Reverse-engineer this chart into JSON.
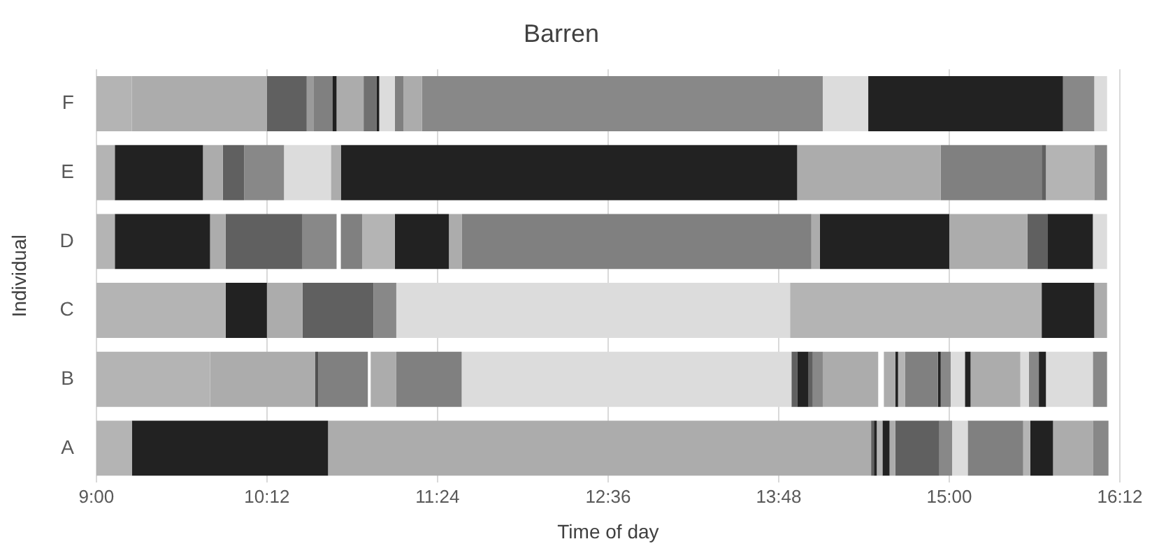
{
  "chart_data": {
    "type": "bar",
    "orientation": "horizontal",
    "title": "Barren",
    "xlabel": "Time of day",
    "ylabel": "Individual",
    "categories": [
      "F",
      "E",
      "D",
      "C",
      "B",
      "A"
    ],
    "xlim": [
      9,
      16.2
    ],
    "xticks": [
      {
        "value": 9,
        "label": "9:00"
      },
      {
        "value": 10.2,
        "label": "10:12"
      },
      {
        "value": 11.4,
        "label": "11:24"
      },
      {
        "value": 12.6,
        "label": "12:36"
      },
      {
        "value": 13.8,
        "label": "13:48"
      },
      {
        "value": 15,
        "label": "15:00"
      },
      {
        "value": 16.2,
        "label": "16:12"
      }
    ],
    "grid": "x",
    "series": [
      {
        "base": [
          9,
          9,
          9,
          9,
          9,
          9
        ],
        "values": [
          0.25,
          0.13,
          0.13,
          0.91,
          0.8,
          0.25
        ],
        "colors": [
          "#b4b4b4",
          "#b4b4b4",
          "#b4b4b4",
          "#b4b4b4",
          "#b4b4b4",
          "#b4b4b4"
        ]
      },
      {
        "base": [
          9.25,
          9.13,
          9.13,
          9.91,
          9.8,
          9.25
        ],
        "values": [
          0.95,
          0.62,
          0.67,
          0.29,
          0.74,
          1.38
        ],
        "colors": [
          "#acacac",
          "#222222",
          "#222222",
          "#222222",
          "#acacac",
          "#222222"
        ]
      },
      {
        "base": [
          10.2,
          9.75,
          9.8,
          10.2,
          10.54,
          10.63
        ],
        "values": [
          0.28,
          0.14,
          0.11,
          0.25,
          0.02,
          3.82
        ],
        "colors": [
          "#606060",
          "#acacac",
          "#acacac",
          "#acacac",
          "#505050",
          "#acacac"
        ]
      },
      {
        "base": [
          10.48,
          9.89,
          9.91,
          10.45,
          10.56,
          14.45
        ],
        "values": [
          0.05,
          0.15,
          0.54,
          0.5,
          0.35,
          0.02
        ],
        "colors": [
          "#9a9a9a",
          "#606060",
          "#606060",
          "#606060",
          "#808080",
          "#606060"
        ]
      },
      {
        "base": [
          10.53,
          10.04,
          10.45,
          10.95,
          10.93,
          14.47
        ],
        "values": [
          0.13,
          0.28,
          0.24,
          0.16,
          0.18,
          0.02
        ],
        "colors": [
          "#808080",
          "#888888",
          "#888888",
          "#888888",
          "#acacac",
          "#222222"
        ]
      },
      {
        "base": [
          10.66,
          10.32,
          10.72,
          11.11,
          11.11,
          14.49
        ],
        "values": [
          0.03,
          0.33,
          0.15,
          2.77,
          0.46,
          0.04
        ],
        "colors": [
          "#202020",
          "#dcdcdc",
          "#808080",
          "#dcdcdc",
          "#808080",
          "#b4b4b4"
        ]
      },
      {
        "base": [
          10.69,
          10.65,
          10.87,
          13.88,
          11.57,
          14.53
        ],
        "values": [
          0.19,
          0.07,
          0.23,
          1.77,
          2.32,
          0.05
        ],
        "colors": [
          "#acacac",
          "#acacac",
          "#b4b4b4",
          "#b4b4b4",
          "#dcdcdc",
          "#222222"
        ]
      },
      {
        "base": [
          10.88,
          10.72,
          11.1,
          15.65,
          13.89,
          14.58
        ],
        "values": [
          0.09,
          3.21,
          0.38,
          0.37,
          0.04,
          0.04
        ],
        "colors": [
          "#707070",
          "#222222",
          "#222222",
          "#222222",
          "#606060",
          "#acacac"
        ]
      },
      {
        "base": [
          10.97,
          13.93,
          11.48,
          16.02,
          13.93,
          14.62
        ],
        "values": [
          0.02,
          1.01,
          0.09,
          0.09,
          0.08,
          0.31
        ],
        "colors": [
          "#202020",
          "#acacac",
          "#acacac",
          "#acacac",
          "#222222",
          "#606060"
        ]
      },
      {
        "base": [
          10.99,
          14.94,
          11.57,
          null,
          14.01,
          14.93
        ],
        "values": [
          0.11,
          0.71,
          2.46,
          null,
          0.03,
          0.09
        ],
        "colors": [
          "#dcdcdc",
          "#808080",
          "#808080",
          null,
          "#606060",
          "#888888"
        ]
      },
      {
        "base": [
          11.1,
          15.65,
          14.03,
          null,
          14.04,
          15.02
        ],
        "values": [
          0.06,
          0.03,
          0.06,
          null,
          0.07,
          0.11
        ],
        "colors": [
          "#808080",
          "#606060",
          "#acacac",
          null,
          "#888888",
          "#dcdcdc"
        ]
      },
      {
        "base": [
          11.16,
          15.68,
          14.09,
          null,
          14.11,
          15.13
        ],
        "values": [
          0.13,
          0.34,
          0.91,
          null,
          0.39,
          0.39
        ],
        "colors": [
          "#acacac",
          "#b4b4b4",
          "#222222",
          null,
          "#acacac",
          "#808080"
        ]
      },
      {
        "base": [
          11.29,
          16.02,
          15,
          null,
          14.54,
          15.52
        ],
        "values": [
          2.82,
          0.09,
          0.55,
          null,
          0.08,
          0.05
        ],
        "colors": [
          "#888888",
          "#888888",
          "#acacac",
          null,
          "#acacac",
          "#b4b4b4"
        ]
      },
      {
        "base": [
          14.11,
          null,
          15.55,
          null,
          14.62,
          15.57
        ],
        "values": [
          0.32,
          null,
          0.14,
          null,
          0.02,
          0.16
        ],
        "colors": [
          "#dcdcdc",
          null,
          "#606060",
          null,
          "#222222",
          "#222222"
        ]
      },
      {
        "base": [
          14.43,
          null,
          15.69,
          null,
          14.64,
          15.73
        ],
        "values": [
          1.37,
          null,
          0.32,
          null,
          0.05,
          0.28
        ],
        "colors": [
          "#222222",
          null,
          "#222222",
          null,
          "#b4b4b4",
          "#acacac"
        ]
      },
      {
        "base": [
          15.8,
          null,
          16.01,
          null,
          14.69,
          16.01
        ],
        "values": [
          0.22,
          null,
          0.1,
          null,
          0.23,
          0.11
        ],
        "colors": [
          "#888888",
          null,
          "#dcdcdc",
          null,
          "#808080",
          "#888888"
        ]
      },
      {
        "base": [
          16.02,
          null,
          null,
          null,
          14.92,
          null
        ],
        "values": [
          0.09,
          null,
          null,
          null,
          0.02,
          null
        ],
        "colors": [
          "#dcdcdc",
          null,
          null,
          null,
          "#222222",
          null
        ]
      },
      {
        "base": [
          null,
          null,
          null,
          null,
          14.94,
          null
        ],
        "values": [
          null,
          null,
          null,
          null,
          0.07,
          null
        ],
        "colors": [
          null,
          null,
          null,
          null,
          "#888888",
          null
        ]
      },
      {
        "base": [
          null,
          null,
          null,
          null,
          15.01,
          null
        ],
        "values": [
          null,
          null,
          null,
          null,
          0.1,
          null
        ],
        "colors": [
          null,
          null,
          null,
          null,
          "#dcdcdc",
          null
        ]
      },
      {
        "base": [
          null,
          null,
          null,
          null,
          15.11,
          null
        ],
        "values": [
          null,
          null,
          null,
          null,
          0.04,
          null
        ],
        "colors": [
          null,
          null,
          null,
          null,
          "#222222",
          null
        ]
      },
      {
        "base": [
          null,
          null,
          null,
          null,
          15.15,
          null
        ],
        "values": [
          null,
          null,
          null,
          null,
          0.35,
          null
        ],
        "colors": [
          null,
          null,
          null,
          null,
          "#acacac",
          null
        ]
      },
      {
        "base": [
          null,
          null,
          null,
          null,
          15.5,
          null
        ],
        "values": [
          null,
          null,
          null,
          null,
          0.06,
          null
        ],
        "colors": [
          null,
          null,
          null,
          null,
          "#dcdcdc",
          null
        ]
      },
      {
        "base": [
          null,
          null,
          null,
          null,
          15.56,
          null
        ],
        "values": [
          null,
          null,
          null,
          null,
          0.07,
          null
        ],
        "colors": [
          null,
          null,
          null,
          null,
          "#888888",
          null
        ]
      },
      {
        "base": [
          null,
          null,
          null,
          null,
          15.63,
          null
        ],
        "values": [
          null,
          null,
          null,
          null,
          0.05,
          null
        ],
        "colors": [
          null,
          null,
          null,
          null,
          "#222222",
          null
        ]
      },
      {
        "base": [
          null,
          null,
          null,
          null,
          15.68,
          null
        ],
        "values": [
          null,
          null,
          null,
          null,
          0.33,
          null
        ],
        "colors": [
          null,
          null,
          null,
          null,
          "#dcdcdc",
          null
        ]
      },
      {
        "base": [
          null,
          null,
          null,
          null,
          16.01,
          null
        ],
        "values": [
          null,
          null,
          null,
          null,
          0.1,
          null
        ],
        "colors": [
          null,
          null,
          null,
          null,
          "#888888",
          null
        ]
      }
    ]
  }
}
